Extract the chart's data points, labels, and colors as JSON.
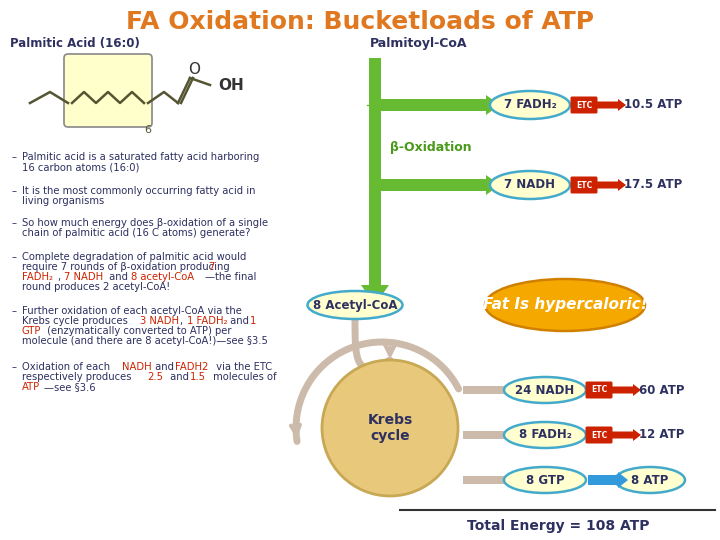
{
  "title": "FA Oxidation: Bucketloads of ATP",
  "title_color": "#E07820",
  "title_fontsize": 18,
  "bg_color": "#FFFFFF",
  "text_color_dark": "#2E3060",
  "text_color_red": "#CC2200",
  "text_color_green": "#4A9A1A",
  "palmitic_label": "Palmitic Acid (16:0)",
  "palmitoyl_label": "Palmitoyl-CoA",
  "beta_ox_label": "β-Oxidation",
  "fadh2_label": "7 FADH₂",
  "nadh_label": "7 NADH",
  "acetyl_label": "8 Acetyl-CoA",
  "krebs_label": "Krebs\ncycle",
  "fat_label": "Fat Is hypercaloric!",
  "nadh_krebs_label": "24 NADH",
  "fadh2_krebs_label": "8 FADH₂",
  "gtp_label": "8 GTP",
  "atp1": "10.5 ATP",
  "atp2": "17.5 ATP",
  "atp3": "60 ATP",
  "atp4": "12 ATP",
  "atp5": "8 ATP",
  "total_label": "Total Energy = 108 ATP"
}
